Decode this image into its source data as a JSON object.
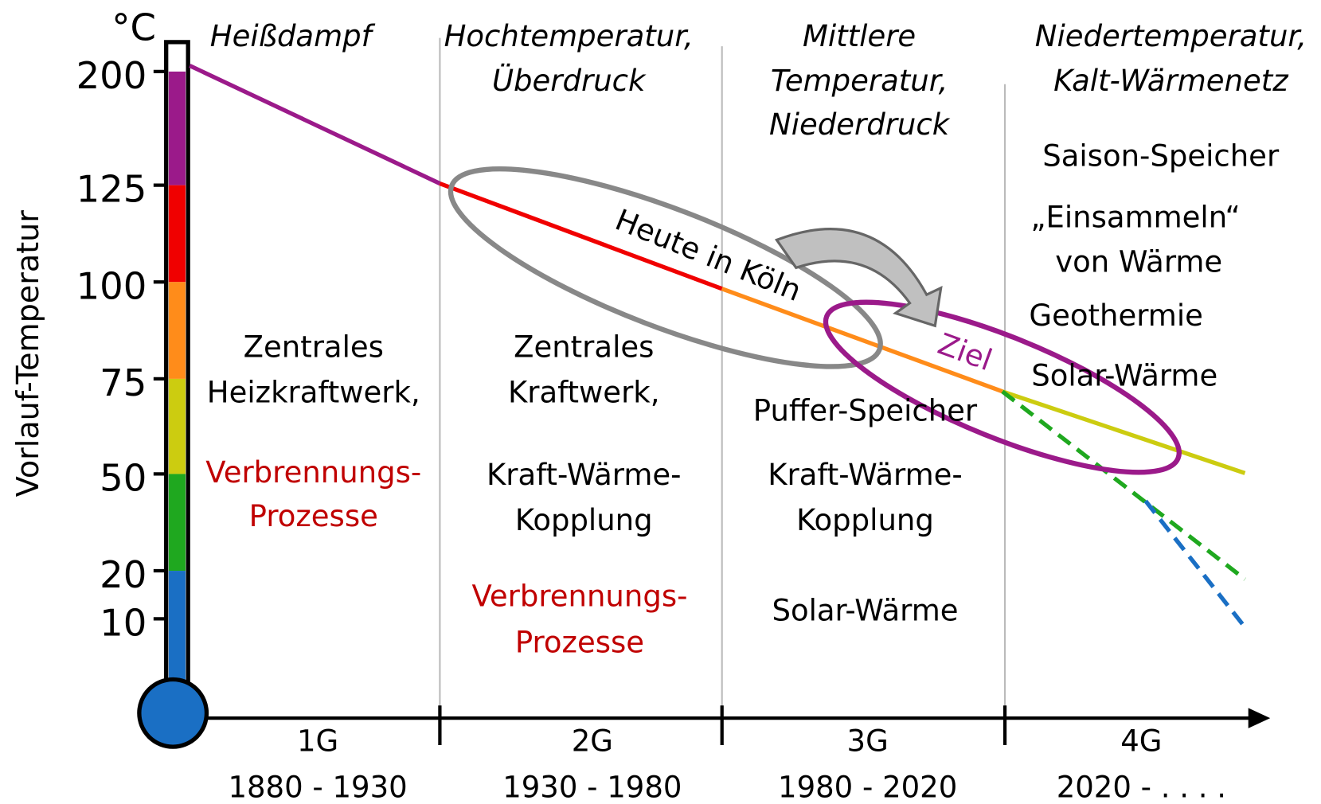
{
  "y_axis": {
    "unit": "°C",
    "label": "Vorlauf-Temperatur",
    "ticks": [
      "200",
      "125",
      "100",
      "75",
      "50",
      "20",
      "10"
    ]
  },
  "columns": [
    {
      "generation": "1G",
      "period": "1880 - 1930",
      "heading": [
        "Heißdampf"
      ],
      "items": [
        "Zentrales",
        "Heizkraftwerk,",
        "Verbrennungs-",
        "Prozesse"
      ]
    },
    {
      "generation": "2G",
      "period": "1930 - 1980",
      "heading": [
        "Hochtemperatur,",
        "Überdruck"
      ],
      "items": [
        "Zentrales",
        "Kraftwerk,",
        "Kraft-Wärme-",
        "Kopplung",
        "Verbrennungs-",
        "Prozesse"
      ]
    },
    {
      "generation": "3G",
      "period": "1980 - 2020",
      "heading": [
        "Mittlere",
        "Temperatur,",
        "Niederdruck"
      ],
      "items": [
        "Puffer-Speicher",
        "Kraft-Wärme-",
        "Kopplung",
        "Solar-Wärme"
      ]
    },
    {
      "generation": "4G",
      "period": "2020 - . . . .",
      "heading": [
        "Niedertemperatur,",
        "Kalt-Wärmenetz"
      ],
      "items": [
        "Saison-Speicher",
        "„Einsammeln“",
        "von Wärme",
        "Geothermie",
        "Solar-Wärme"
      ]
    }
  ],
  "annotations": {
    "today": "Heute in Köln",
    "goal": "Ziel"
  }
}
